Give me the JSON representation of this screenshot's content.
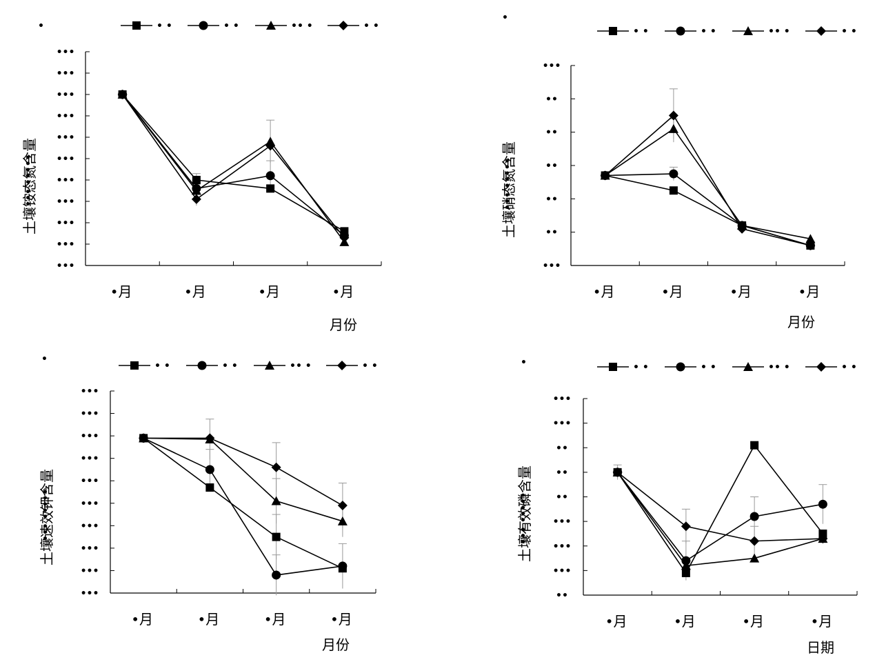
{
  "chart_data": [
    {
      "type": "line",
      "panel": "top-left",
      "xlabel": "月份",
      "ylabel": "土壤铵态氮含量",
      "ylabel_suffix": "••• •••••",
      "categories": [
        "•月",
        "•月",
        "•月",
        "•月"
      ],
      "y_tick_labels": [
        "•••",
        "•••",
        "•••",
        "•••",
        "•••",
        "•••",
        "•••",
        "•••",
        "•••",
        "•••",
        "•••"
      ],
      "ylim": [
        0,
        10
      ],
      "legend_labels": [
        "• •",
        "• •",
        "•• •",
        "• •"
      ],
      "corner_label": "•",
      "legend_position": "top",
      "series": [
        {
          "marker": "square",
          "values": [
            8.0,
            4.0,
            3.6,
            1.6
          ],
          "errors": [
            0,
            0.3,
            0,
            0
          ]
        },
        {
          "marker": "circle",
          "values": [
            8.0,
            3.6,
            4.2,
            1.4
          ],
          "errors": [
            0,
            0.3,
            0.7,
            0
          ]
        },
        {
          "marker": "triangle",
          "values": [
            8.0,
            3.5,
            5.8,
            1.1
          ],
          "errors": [
            0,
            0.3,
            1.0,
            0
          ]
        },
        {
          "marker": "diamond",
          "values": [
            8.0,
            3.1,
            5.6,
            1.3
          ],
          "errors": [
            0,
            0.3,
            0,
            0
          ]
        }
      ]
    },
    {
      "type": "line",
      "panel": "top-right",
      "xlabel": "月份",
      "ylabel": "土壤硝态氮含量",
      "ylabel_suffix": "••• •••••",
      "categories": [
        "•月",
        "•月",
        "•月",
        "•月"
      ],
      "y_tick_labels": [
        "•••",
        "••",
        "••",
        "••",
        "••",
        "••",
        "•••"
      ],
      "ylim": [
        0,
        6
      ],
      "legend_labels": [
        "• •",
        "• •",
        "•• •",
        "• •"
      ],
      "corner_label": "•",
      "legend_position": "top",
      "series": [
        {
          "marker": "square",
          "values": [
            2.7,
            2.25,
            1.2,
            0.6
          ],
          "errors": [
            0,
            0,
            0,
            0
          ]
        },
        {
          "marker": "circle",
          "values": [
            2.7,
            2.75,
            1.2,
            0.6
          ],
          "errors": [
            0,
            0.2,
            0,
            0
          ]
        },
        {
          "marker": "triangle",
          "values": [
            2.7,
            4.1,
            1.2,
            0.8
          ],
          "errors": [
            0,
            0.3,
            0,
            0
          ]
        },
        {
          "marker": "diamond",
          "values": [
            2.7,
            4.5,
            1.1,
            0.6
          ],
          "errors": [
            0,
            0.8,
            0.1,
            0
          ]
        }
      ]
    },
    {
      "type": "line",
      "panel": "bottom-left",
      "xlabel": "月份",
      "ylabel": "土壤速效钾含量",
      "ylabel_suffix": "••• •••••",
      "categories": [
        "•月",
        "•月",
        "•月",
        "•月"
      ],
      "y_tick_labels": [
        "•••",
        "•••",
        "•••",
        "•••",
        "•••",
        "•••",
        "•••",
        "•••",
        "•••",
        "•••"
      ],
      "ylim": [
        0,
        9
      ],
      "legend_labels": [
        "• •",
        "• •",
        "•• •",
        "• •"
      ],
      "corner_label": "•",
      "legend_position": "top",
      "series": [
        {
          "marker": "square",
          "values": [
            6.9,
            4.7,
            2.5,
            1.1
          ],
          "errors": [
            0,
            0,
            1.0,
            0
          ]
        },
        {
          "marker": "circle",
          "values": [
            6.9,
            5.5,
            0.8,
            1.2
          ],
          "errors": [
            0,
            0.9,
            0.9,
            1.0
          ]
        },
        {
          "marker": "triangle",
          "values": [
            6.9,
            6.85,
            4.1,
            3.2
          ],
          "errors": [
            0,
            0.9,
            1.0,
            0.7
          ]
        },
        {
          "marker": "diamond",
          "values": [
            6.9,
            6.9,
            5.6,
            3.9
          ],
          "errors": [
            0,
            0,
            1.1,
            1.0
          ]
        }
      ]
    },
    {
      "type": "line",
      "panel": "bottom-right",
      "xlabel": "日期",
      "ylabel": "土壤有效磷含量",
      "ylabel_suffix": "••• •••••",
      "categories": [
        "•月",
        "•月",
        "•月",
        "•月"
      ],
      "y_tick_labels": [
        "••",
        "•••",
        "•••",
        "•••",
        "••",
        "••",
        "••",
        "•••",
        "•••"
      ],
      "ylim": [
        0,
        8
      ],
      "legend_labels": [
        "• •",
        "• •",
        "•• •",
        "• •"
      ],
      "corner_label": "•",
      "legend_position": "top",
      "series": [
        {
          "marker": "square",
          "values": [
            5.0,
            0.9,
            6.1,
            2.5
          ],
          "errors": [
            0,
            0,
            0,
            0
          ]
        },
        {
          "marker": "circle",
          "values": [
            5.0,
            1.4,
            3.2,
            3.7
          ],
          "errors": [
            0.3,
            0.8,
            0.8,
            0.8
          ]
        },
        {
          "marker": "triangle",
          "values": [
            5.0,
            1.2,
            1.5,
            2.3
          ],
          "errors": [
            0,
            0,
            0,
            0
          ]
        },
        {
          "marker": "diamond",
          "values": [
            5.0,
            2.8,
            2.2,
            2.3
          ],
          "errors": [
            0,
            0.7,
            0.6,
            0
          ]
        }
      ]
    }
  ]
}
